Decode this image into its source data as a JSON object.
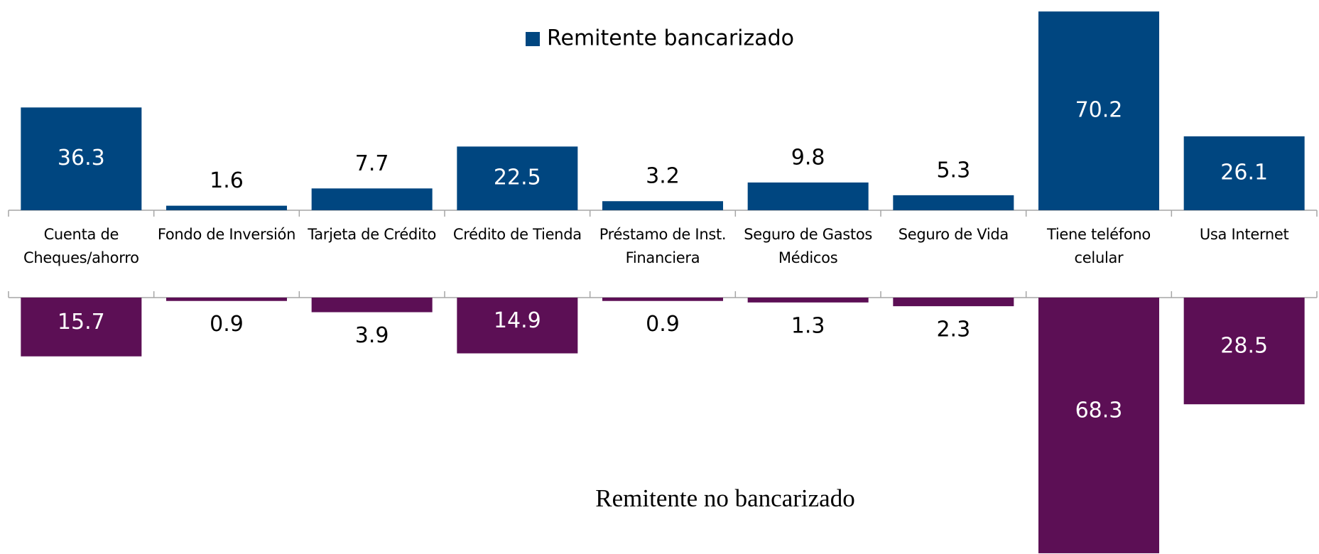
{
  "chart_data": {
    "type": "bar",
    "categories": [
      "Cuenta de Cheques/ahorro",
      "Fondo de Inversión",
      "Tarjeta de Crédito",
      "Crédito de Tienda",
      "Préstamo de Inst. Financiera",
      "Seguro de Gastos Médicos",
      "Seguro de Vida",
      "Tiene teléfono celular",
      "Usa Internet"
    ],
    "series": [
      {
        "name": "Remitente bancarizado",
        "color": "#004680",
        "axis": "y",
        "values": [
          36.3,
          1.6,
          7.7,
          22.5,
          3.2,
          9.8,
          5.3,
          70.2,
          26.1
        ]
      },
      {
        "name": "Remitente no bancarizado",
        "color": "#5c0f55",
        "axis": "y2",
        "values": [
          15.7,
          0.9,
          3.9,
          14.9,
          0.9,
          1.3,
          2.3,
          68.3,
          28.5
        ]
      }
    ],
    "ylim": [
      0,
      72
    ],
    "y2lim": [
      0,
      68.5
    ]
  }
}
